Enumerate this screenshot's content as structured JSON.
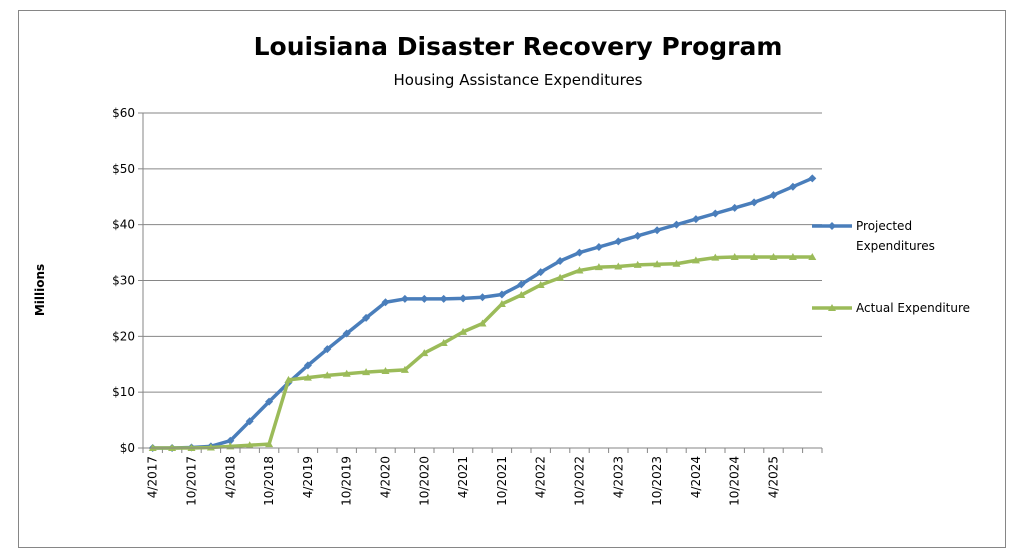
{
  "chart_data": {
    "type": "line",
    "title": "Louisiana Disaster Recovery Program",
    "subtitle": "Housing Assistance Expenditures",
    "y_label": "Millions",
    "categories": [
      "4/2017",
      null,
      "10/2017",
      null,
      "4/2018",
      null,
      "10/2018",
      null,
      "4/2019",
      null,
      "10/2019",
      null,
      "4/2020",
      null,
      "10/2020",
      null,
      "4/2021",
      null,
      "10/2021",
      null,
      "4/2022",
      null,
      "10/2022",
      null,
      "4/2023",
      null,
      "10/2023",
      null,
      "4/2024",
      null,
      "10/2024",
      null,
      "4/2025",
      null,
      null
    ],
    "series": [
      {
        "name": "Projected Expenditures",
        "color": "#4a7ebb",
        "marker": "diamond",
        "values": [
          0,
          0,
          0.1,
          0.3,
          1.3,
          4.8,
          8.3,
          11.7,
          14.8,
          17.7,
          20.5,
          23.3,
          26.1,
          26.7,
          26.7,
          26.7,
          26.8,
          27.0,
          27.5,
          29.3,
          31.5,
          33.5,
          35.0,
          36.0,
          37.0,
          38.0,
          39.0,
          40.0,
          41.0,
          42.0,
          43.0,
          44.0,
          45.3,
          46.8,
          48.3
        ]
      },
      {
        "name": "Actual Expenditure",
        "color": "#9bbb59",
        "marker": "triangle",
        "values": [
          0,
          0,
          0,
          0.1,
          0.3,
          0.5,
          0.7,
          12.2,
          12.6,
          13.0,
          13.3,
          13.6,
          13.8,
          14.0,
          17.0,
          18.8,
          20.8,
          22.3,
          25.8,
          27.4,
          29.2,
          30.5,
          31.8,
          32.4,
          32.5,
          32.8,
          32.9,
          33.0,
          33.6,
          34.1,
          34.2,
          34.2,
          34.2,
          34.2,
          34.2
        ]
      }
    ],
    "ylim": [
      0,
      60
    ],
    "yticks": [
      {
        "value": 0,
        "label": "$0"
      },
      {
        "value": 10,
        "label": "$10"
      },
      {
        "value": 20,
        "label": "$20"
      },
      {
        "value": 30,
        "label": "$30"
      },
      {
        "value": 40,
        "label": "$40"
      },
      {
        "value": 50,
        "label": "$50"
      },
      {
        "value": 60,
        "label": "$60"
      }
    ],
    "grid": true,
    "legend": "right"
  }
}
